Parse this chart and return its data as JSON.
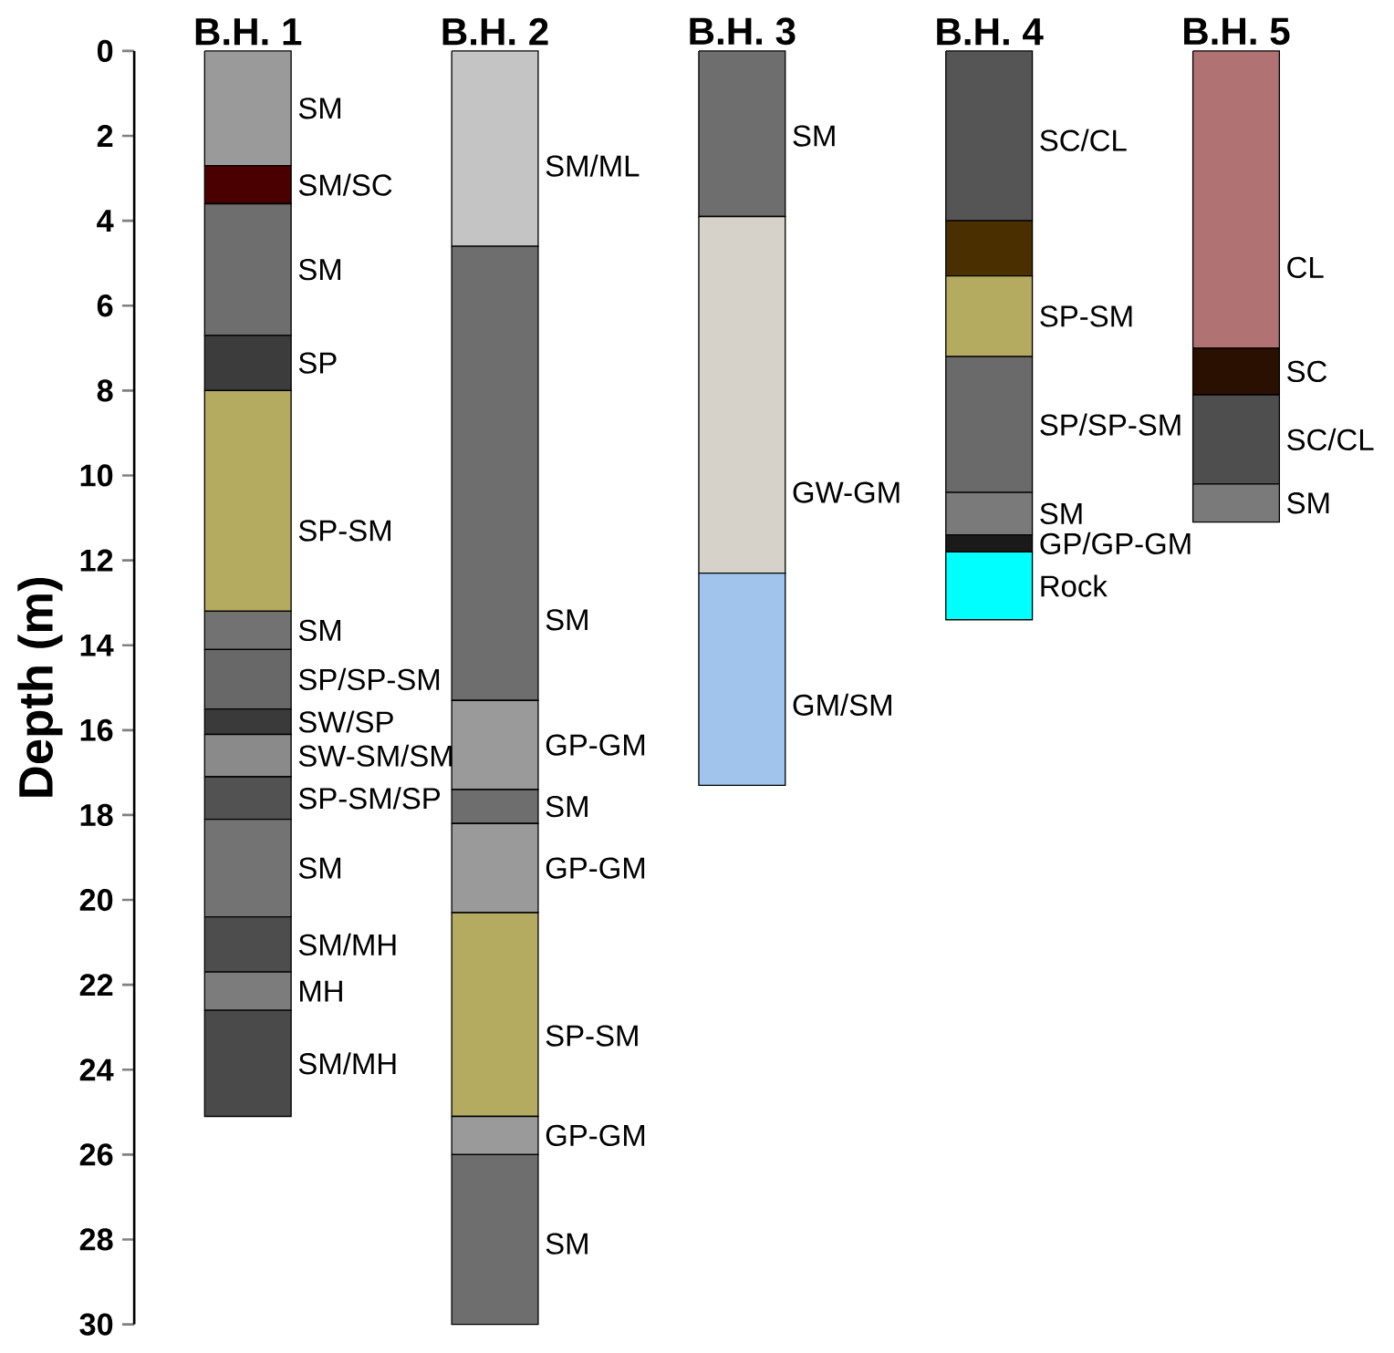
{
  "chart_data": {
    "type": "bar",
    "stacked": true,
    "ylabel": "Depth (m)",
    "categories": [
      "B.H. 1",
      "B.H. 2",
      "B.H. 3",
      "B.H. 4",
      "B.H. 5"
    ],
    "ylim": [
      30,
      0
    ],
    "yticks": [
      0,
      2,
      4,
      6,
      8,
      10,
      12,
      14,
      16,
      18,
      20,
      22,
      24,
      26,
      28,
      30
    ],
    "series": [
      {
        "values": [
          2.7,
          4.6,
          3.9,
          4.0,
          7.0
        ],
        "colors": [
          "#9a9a9a",
          "#c4c4c4",
          "#6e6e6e",
          "#555555",
          "#b07272"
        ]
      },
      {
        "values": [
          0.9,
          10.7,
          8.4,
          1.3,
          1.1
        ],
        "colors": [
          "#4a0000",
          "#6e6e6e",
          "#d6d2ca",
          "#4a3000",
          "#2a1000"
        ]
      },
      {
        "values": [
          3.1,
          2.1,
          5.0,
          1.9,
          2.1
        ],
        "colors": [
          "#6e6e6e",
          "#9a9a9a",
          "#a0c4ec",
          "#b4aa60",
          "#4e4e4e"
        ]
      },
      {
        "values": [
          1.3,
          0.8,
          null,
          3.2,
          0.9
        ],
        "colors": [
          "#3c3c3c",
          "#6e6e6e",
          null,
          "#6a6a6a",
          "#7a7a7a"
        ]
      },
      {
        "values": [
          5.2,
          2.1,
          null,
          1.0,
          null
        ],
        "colors": [
          "#b4aa60",
          "#9a9a9a",
          null,
          "#7a7a7a",
          null
        ]
      },
      {
        "values": [
          0.9,
          4.8,
          null,
          0.4,
          null
        ],
        "colors": [
          "#727272",
          "#b4aa60",
          null,
          "#1a1a1a",
          null
        ]
      },
      {
        "values": [
          1.4,
          0.9,
          null,
          1.6,
          null
        ],
        "colors": [
          "#686868",
          "#9a9a9a",
          null,
          "#00ffff",
          null
        ]
      },
      {
        "values": [
          0.6,
          4.0,
          null,
          null,
          null
        ],
        "colors": [
          "#3a3a3a",
          "#6e6e6e",
          null,
          null,
          null
        ]
      },
      {
        "values": [
          1.0,
          null,
          null,
          null,
          null
        ],
        "colors": [
          "#8a8a8a",
          null,
          null,
          null,
          null
        ]
      },
      {
        "values": [
          1.0,
          null,
          null,
          null,
          null
        ],
        "colors": [
          "#525252",
          null,
          null,
          null,
          null
        ]
      },
      {
        "values": [
          2.3,
          null,
          null,
          null,
          null
        ],
        "colors": [
          "#737373",
          null,
          null,
          null,
          null
        ]
      },
      {
        "values": [
          1.3,
          null,
          null,
          null,
          null
        ],
        "colors": [
          "#4d4d4d",
          null,
          null,
          null,
          null
        ]
      },
      {
        "values": [
          0.9,
          null,
          null,
          null,
          null
        ],
        "colors": [
          "#7c7c7c",
          null,
          null,
          null,
          null
        ]
      },
      {
        "values": [
          2.5,
          null,
          null,
          null,
          null
        ],
        "colors": [
          "#4a4a4a",
          null,
          null,
          null,
          null
        ]
      }
    ],
    "annotations": [
      {
        "text": "SM",
        "x": "B.H. 1",
        "y": 2.7
      },
      {
        "text": "SM/SC",
        "x": "B.H. 1",
        "y": 3.6
      },
      {
        "text": "SM",
        "x": "B.H. 1",
        "y": 6.7
      },
      {
        "text": "SP",
        "x": "B.H. 1",
        "y": 8.0
      },
      {
        "text": "SP-SM",
        "x": "B.H. 1",
        "y": 13.2
      },
      {
        "text": "SM",
        "x": "B.H. 1",
        "y": 14.1
      },
      {
        "text": "SP/SP-SM",
        "x": "B.H. 1",
        "y": 15.5
      },
      {
        "text": "SW/SP",
        "x": "B.H. 1",
        "y": 16.1
      },
      {
        "text": "SW-SM/SM",
        "x": "B.H. 1",
        "y": 17.1
      },
      {
        "text": "SP-SM/SP",
        "x": "B.H. 1",
        "y": 18.1
      },
      {
        "text": "SM",
        "x": "B.H. 1",
        "y": 20.4
      },
      {
        "text": "SM/MH",
        "x": "B.H. 1",
        "y": 21.7
      },
      {
        "text": "MH",
        "x": "B.H. 1",
        "y": 22.6
      },
      {
        "text": "SM/MH",
        "x": "B.H. 1",
        "y": 25.1
      },
      {
        "text": "SM/ML",
        "x": "B.H. 2",
        "y": 4.6
      },
      {
        "text": "SM",
        "x": "B.H. 2",
        "y": 15.3
      },
      {
        "text": "GP-GM",
        "x": "B.H. 2",
        "y": 17.4
      },
      {
        "text": "SM",
        "x": "B.H. 2",
        "y": 18.2
      },
      {
        "text": "GP-GM",
        "x": "B.H. 2",
        "y": 20.3
      },
      {
        "text": "SP-SM",
        "x": "B.H. 2",
        "y": 25.1
      },
      {
        "text": "GP-GM",
        "x": "B.H. 2",
        "y": 26.0
      },
      {
        "text": "SM",
        "x": "B.H. 2",
        "y": 30.0
      },
      {
        "text": "SM",
        "x": "B.H. 3",
        "y": 3.9
      },
      {
        "text": "GW-GM",
        "x": "B.H. 3",
        "y": 12.3
      },
      {
        "text": "GM/SM",
        "x": "B.H. 3",
        "y": 17.3
      },
      {
        "text": "SC/CL",
        "x": "B.H. 4",
        "y": 4.0
      },
      {
        "text": "SP-SM",
        "x": "B.H. 4",
        "y": 7.2
      },
      {
        "text": "SP/SP-SM",
        "x": "B.H. 4",
        "y": 10.4
      },
      {
        "text": "SM",
        "x": "B.H. 4",
        "y": 11.4
      },
      {
        "text": "GP/GP-GM",
        "x": "B.H. 4",
        "y": 11.8
      },
      {
        "text": "Rock",
        "x": "B.H. 4",
        "y": 13.4
      },
      {
        "text": "CL",
        "x": "B.H. 5",
        "y": 7.0
      },
      {
        "text": "SC",
        "x": "B.H. 5",
        "y": 8.1
      },
      {
        "text": "SC/CL",
        "x": "B.H. 5",
        "y": 10.2
      },
      {
        "text": "SM",
        "x": "B.H. 5",
        "y": 11.1
      }
    ]
  }
}
